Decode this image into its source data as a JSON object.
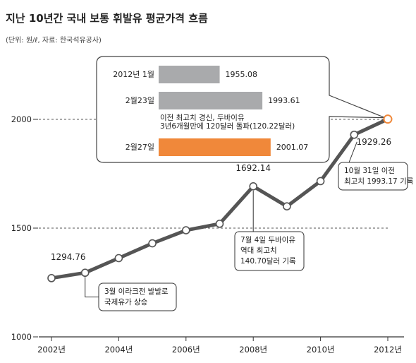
{
  "title": "지난 10년간 국내 보통 휘발유 평균가격 흐름",
  "subtitle": "(단위: 원/ℓ, 자료: 한국석유공사)",
  "chart_data": {
    "type": "line",
    "x": [
      2002,
      2003,
      2004,
      2005,
      2006,
      2007,
      2008,
      2009,
      2010,
      2011,
      2012
    ],
    "series": [
      {
        "values": [
          1270,
          1294.76,
          1362,
          1430,
          1490,
          1520,
          1692.14,
          1600,
          1716,
          1929.26,
          2001.07
        ]
      }
    ],
    "x_tick_labels": [
      "2002년",
      "2004년",
      "2006년",
      "2008년",
      "2010년",
      "2012년"
    ],
    "y_ticks": [
      1000,
      1500,
      2000
    ],
    "ylim": [
      1000,
      2000
    ],
    "reference_lines": [
      1500,
      2000
    ],
    "data_labels": [
      {
        "x": 2003,
        "text": "1294.76"
      },
      {
        "x": 2008,
        "text": "1692.14"
      },
      {
        "x": 2011,
        "text": "1929.26"
      }
    ],
    "annotations": [
      {
        "x": 2003,
        "lines": [
          "3월 이라크전 발발로",
          "국제유가 상승"
        ]
      },
      {
        "x": 2008,
        "lines": [
          "7월 4일 두바이유",
          "역대 최고치",
          "140.70달러 기록"
        ]
      },
      {
        "x": 2011,
        "lines": [
          "10월 31일 이전",
          "최고치 1993.17 기록"
        ]
      }
    ],
    "callout": {
      "rows": [
        {
          "label": "2012년 1월",
          "value": 1955.08,
          "value_text": "1955.08",
          "color": "#a9aaac"
        },
        {
          "label": "2월23일",
          "value": 1993.61,
          "value_text": "1993.61",
          "color": "#a9aaac",
          "note": [
            "이전 최고치 경신, 두바이유",
            "3년6개월만에 120달러 돌파(120.22달러)"
          ]
        },
        {
          "label": "2월27일",
          "value": 2001.07,
          "value_text": "2001.07",
          "color": "#f0883a"
        }
      ]
    },
    "colors": {
      "line": "#555555",
      "marker_fill": "#ffffff",
      "highlight": "#f0883a",
      "bar_gray": "#a9aaac"
    }
  }
}
